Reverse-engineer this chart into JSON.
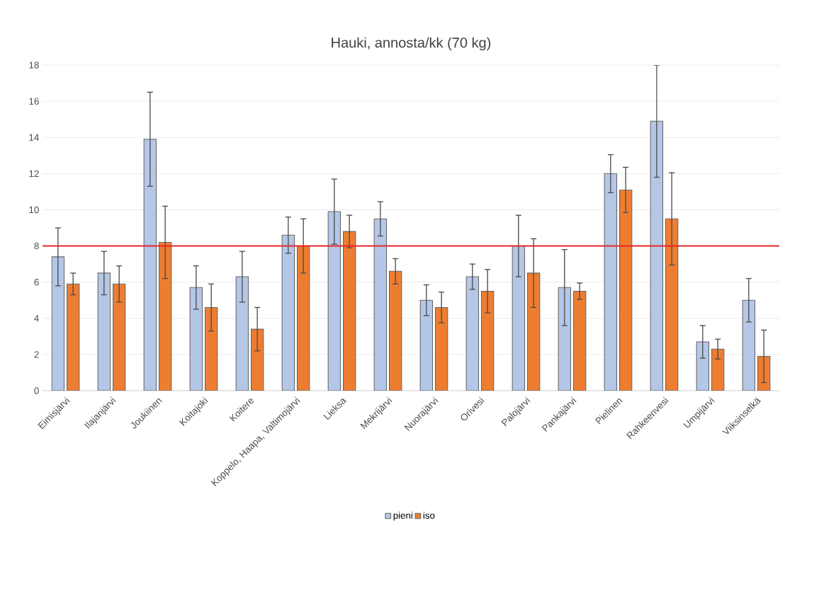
{
  "chart_data": {
    "type": "bar",
    "title": "Hauki, annosta/kk (70 kg)",
    "categories": [
      "Eimisjärvi",
      "Ilajanjärvi",
      "Joukiinen",
      "Koitajoki",
      "Koitere",
      "Koppelo, Haapa, Valtimojärvi",
      "Lieksa",
      "Mekrijärvi",
      "Nuorajärvi",
      "Orivesi",
      "Palojärvi",
      "Pankajärvi",
      "Pielinen",
      "Rahkeenvesi",
      "Umpijärvi",
      "Viiksinselkä"
    ],
    "series": [
      {
        "name": "pieni",
        "color": "#b4c7e7",
        "values": [
          7.4,
          6.5,
          13.9,
          5.7,
          6.3,
          8.6,
          9.9,
          9.5,
          5.0,
          6.3,
          8.0,
          5.7,
          12.0,
          14.9,
          2.7,
          5.0
        ],
        "errors": [
          1.6,
          1.2,
          2.6,
          1.2,
          1.4,
          1.0,
          1.8,
          0.95,
          0.85,
          0.7,
          1.7,
          2.1,
          1.05,
          3.1,
          0.9,
          1.2
        ]
      },
      {
        "name": "iso",
        "color": "#ed7d31",
        "values": [
          5.9,
          5.9,
          8.2,
          4.6,
          3.4,
          8.0,
          8.8,
          6.6,
          4.6,
          5.5,
          6.5,
          5.5,
          11.1,
          9.5,
          2.3,
          1.9
        ],
        "errors": [
          0.6,
          1.0,
          2.0,
          1.3,
          1.2,
          1.5,
          0.9,
          0.7,
          0.85,
          1.2,
          1.9,
          0.45,
          1.25,
          2.55,
          0.55,
          1.45
        ]
      }
    ],
    "ylim": [
      0,
      18
    ],
    "yticks": [
      0,
      2,
      4,
      6,
      8,
      10,
      12,
      14,
      16,
      18
    ],
    "ref_lines": [
      {
        "axis": "y",
        "value": 8,
        "color": "#e8262a"
      }
    ],
    "grid": "y",
    "legend": "bottom"
  }
}
